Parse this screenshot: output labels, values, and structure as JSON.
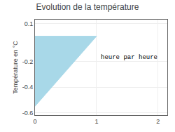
{
  "chart_data": {
    "type": "area",
    "title": "Evolution de la température",
    "ylabel": "Température en °C",
    "annotations": [
      {
        "text": "heure par heure",
        "x": 1.05,
        "y": -0.17
      }
    ],
    "x": [
      0,
      0,
      1,
      0
    ],
    "values": [
      0,
      -0.55,
      0,
      0
    ],
    "color": "#a8d8e8",
    "xlim": [
      0,
      2.15
    ],
    "ylim": [
      -0.62,
      0.13
    ],
    "xticks": [
      0,
      1,
      2
    ],
    "yticks": [
      0.1,
      -0.2,
      -0.4,
      -0.6
    ],
    "grid": true
  }
}
